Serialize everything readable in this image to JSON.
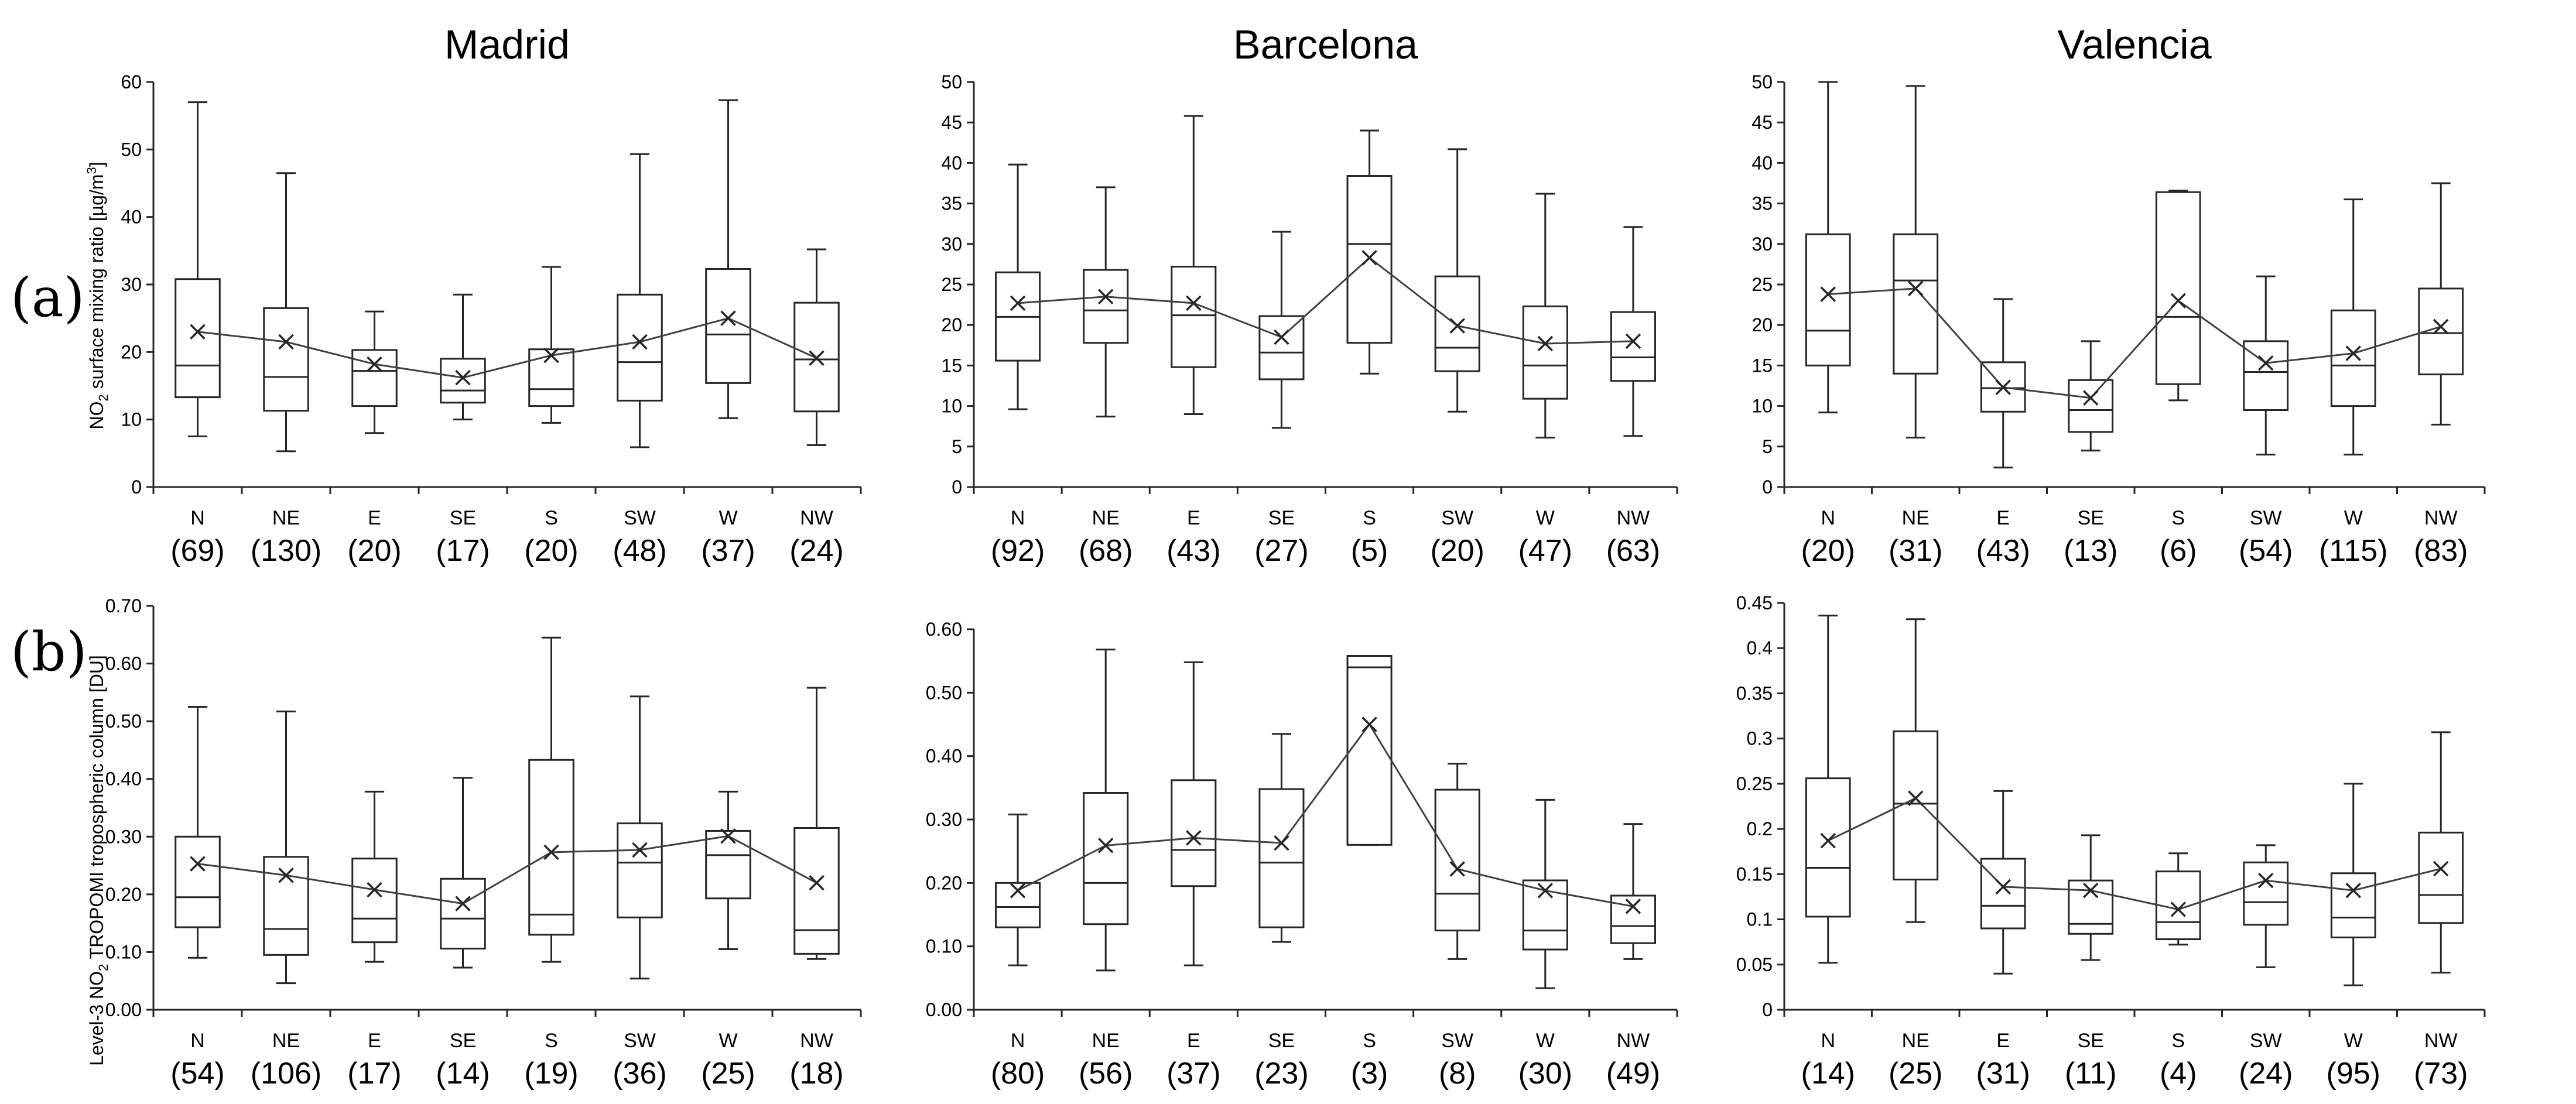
{
  "row_labels": [
    "(a)",
    "(b)"
  ],
  "city_titles": [
    "Madrid",
    "Barcelona",
    "Valencia"
  ],
  "ylabels": {
    "a": {
      "prefix": "NO",
      "sub": "2",
      "mid": " surface mixing ratio [µg/m",
      "sup": "3",
      "suffix": "]"
    },
    "b": {
      "prefix": "Level-3 NO",
      "sub": "2",
      "suffix": " TROPOMI tropospheric column [DU]"
    }
  },
  "chart_data": [
    {
      "type": "box",
      "row": "a",
      "city": "Madrid",
      "title": "Madrid",
      "categories": [
        "N",
        "NE",
        "E",
        "SE",
        "S",
        "SW",
        "W",
        "NW"
      ],
      "counts": [
        "(69)",
        "(130)",
        "(20)",
        "(17)",
        "(20)",
        "(48)",
        "(37)",
        "(24)"
      ],
      "ylim": [
        0,
        60
      ],
      "yticks": [
        0,
        10,
        20,
        30,
        40,
        50,
        60
      ],
      "ytick_labels": [
        "0",
        "10",
        "20",
        "30",
        "40",
        "50",
        "60"
      ],
      "boxes": [
        {
          "min": 7.5,
          "q1": 13.3,
          "median": 18.0,
          "q3": 30.8,
          "max": 57.0,
          "mean": 23.0
        },
        {
          "min": 5.3,
          "q1": 11.3,
          "median": 16.3,
          "q3": 26.5,
          "max": 46.5,
          "mean": 21.5
        },
        {
          "min": 8.0,
          "q1": 12.0,
          "median": 17.2,
          "q3": 20.3,
          "max": 26.0,
          "mean": 18.2
        },
        {
          "min": 10.0,
          "q1": 12.5,
          "median": 14.3,
          "q3": 19.0,
          "max": 28.5,
          "mean": 16.2
        },
        {
          "min": 9.5,
          "q1": 12.0,
          "median": 14.5,
          "q3": 20.4,
          "max": 32.6,
          "mean": 19.5
        },
        {
          "min": 5.9,
          "q1": 12.8,
          "median": 18.5,
          "q3": 28.5,
          "max": 49.3,
          "mean": 21.5
        },
        {
          "min": 10.2,
          "q1": 15.4,
          "median": 22.6,
          "q3": 32.3,
          "max": 57.3,
          "mean": 25.0
        },
        {
          "min": 6.2,
          "q1": 11.2,
          "median": 18.9,
          "q3": 27.3,
          "max": 35.2,
          "mean": 19.1
        }
      ]
    },
    {
      "type": "box",
      "row": "a",
      "city": "Barcelona",
      "title": "Barcelona",
      "categories": [
        "N",
        "NE",
        "E",
        "SE",
        "S",
        "SW",
        "W",
        "NW"
      ],
      "counts": [
        "(92)",
        "(68)",
        "(43)",
        "(27)",
        "(5)",
        "(20)",
        "(47)",
        "(63)"
      ],
      "ylim": [
        0,
        50
      ],
      "yticks": [
        0,
        5,
        10,
        15,
        20,
        25,
        30,
        35,
        40,
        45,
        50
      ],
      "ytick_labels": [
        "0",
        "5",
        "10",
        "15",
        "20",
        "25",
        "30",
        "35",
        "40",
        "45",
        "50"
      ],
      "boxes": [
        {
          "min": 9.6,
          "q1": 15.6,
          "median": 21.0,
          "q3": 26.5,
          "max": 39.8,
          "mean": 22.7
        },
        {
          "min": 8.7,
          "q1": 17.8,
          "median": 21.8,
          "q3": 26.8,
          "max": 37.0,
          "mean": 23.5
        },
        {
          "min": 9.0,
          "q1": 14.8,
          "median": 21.2,
          "q3": 27.2,
          "max": 45.8,
          "mean": 22.7
        },
        {
          "min": 7.3,
          "q1": 13.3,
          "median": 16.6,
          "q3": 21.1,
          "max": 31.5,
          "mean": 18.5
        },
        {
          "min": 14.0,
          "q1": 17.8,
          "median": 30.0,
          "q3": 38.4,
          "max": 44.0,
          "mean": 28.3
        },
        {
          "min": 9.3,
          "q1": 14.3,
          "median": 17.2,
          "q3": 26.0,
          "max": 41.7,
          "mean": 19.9
        },
        {
          "min": 6.1,
          "q1": 10.9,
          "median": 15.0,
          "q3": 22.3,
          "max": 36.2,
          "mean": 17.7
        },
        {
          "min": 6.3,
          "q1": 13.1,
          "median": 16.0,
          "q3": 21.6,
          "max": 32.1,
          "mean": 18.0
        }
      ]
    },
    {
      "type": "box",
      "row": "a",
      "city": "Valencia",
      "title": "Valencia",
      "categories": [
        "N",
        "NE",
        "E",
        "SE",
        "S",
        "SW",
        "W",
        "NW"
      ],
      "counts": [
        "(20)",
        "(31)",
        "(43)",
        "(13)",
        "(6)",
        "(54)",
        "(115)",
        "(83)"
      ],
      "ylim": [
        0,
        50
      ],
      "yticks": [
        0,
        5,
        10,
        15,
        20,
        25,
        30,
        35,
        40,
        45,
        50
      ],
      "ytick_labels": [
        "0",
        "5",
        "10",
        "15",
        "20",
        "25",
        "30",
        "35",
        "40",
        "45",
        "50"
      ],
      "boxes": [
        {
          "min": 9.2,
          "q1": 15.0,
          "median": 19.3,
          "q3": 31.2,
          "max": 50.0,
          "mean": 23.8
        },
        {
          "min": 6.1,
          "q1": 14.0,
          "median": 25.5,
          "q3": 31.2,
          "max": 49.5,
          "mean": 24.5
        },
        {
          "min": 2.4,
          "q1": 9.3,
          "median": 12.2,
          "q3": 15.4,
          "max": 23.2,
          "mean": 12.3
        },
        {
          "min": 4.5,
          "q1": 6.8,
          "median": 9.5,
          "q3": 13.2,
          "max": 18.0,
          "mean": 11.0
        },
        {
          "min": 10.7,
          "q1": 12.7,
          "median": 21.0,
          "q3": 36.4,
          "max": 36.6,
          "mean": 23.0
        },
        {
          "min": 4.0,
          "q1": 9.5,
          "median": 14.2,
          "q3": 18.0,
          "max": 26.0,
          "mean": 15.3
        },
        {
          "min": 4.0,
          "q1": 10.0,
          "median": 15.0,
          "q3": 21.8,
          "max": 35.5,
          "mean": 16.5
        },
        {
          "min": 7.7,
          "q1": 13.9,
          "median": 19.0,
          "q3": 24.5,
          "max": 37.5,
          "mean": 19.8
        }
      ]
    },
    {
      "type": "box",
      "row": "b",
      "city": "Madrid",
      "categories": [
        "N",
        "NE",
        "E",
        "SE",
        "S",
        "SW",
        "W",
        "NW"
      ],
      "counts": [
        "(54)",
        "(106)",
        "(17)",
        "(14)",
        "(19)",
        "(36)",
        "(25)",
        "(18)"
      ],
      "ylim": [
        0,
        0.7
      ],
      "yticks": [
        0,
        0.1,
        0.2,
        0.3,
        0.4,
        0.5,
        0.6,
        0.7
      ],
      "ytick_labels": [
        "0.00",
        "0.10",
        "0.20",
        "0.30",
        "0.40",
        "0.50",
        "0.60",
        "0.70"
      ],
      "boxes": [
        {
          "min": 0.09,
          "q1": 0.143,
          "median": 0.195,
          "q3": 0.3,
          "max": 0.525,
          "mean": 0.253
        },
        {
          "min": 0.046,
          "q1": 0.095,
          "median": 0.14,
          "q3": 0.265,
          "max": 0.517,
          "mean": 0.233
        },
        {
          "min": 0.083,
          "q1": 0.117,
          "median": 0.158,
          "q3": 0.262,
          "max": 0.378,
          "mean": 0.208
        },
        {
          "min": 0.073,
          "q1": 0.106,
          "median": 0.158,
          "q3": 0.227,
          "max": 0.402,
          "mean": 0.184
        },
        {
          "min": 0.083,
          "q1": 0.13,
          "median": 0.165,
          "q3": 0.433,
          "max": 0.645,
          "mean": 0.273
        },
        {
          "min": 0.054,
          "q1": 0.16,
          "median": 0.255,
          "q3": 0.323,
          "max": 0.543,
          "mean": 0.277
        },
        {
          "min": 0.105,
          "q1": 0.193,
          "median": 0.268,
          "q3": 0.31,
          "max": 0.378,
          "mean": 0.301
        },
        {
          "min": 0.088,
          "q1": 0.097,
          "median": 0.138,
          "q3": 0.315,
          "max": 0.558,
          "mean": 0.22
        }
      ]
    },
    {
      "type": "box",
      "row": "b",
      "city": "Barcelona",
      "categories": [
        "N",
        "NE",
        "E",
        "SE",
        "S",
        "SW",
        "W",
        "NW"
      ],
      "counts": [
        "(80)",
        "(56)",
        "(37)",
        "(23)",
        "(3)",
        "(8)",
        "(30)",
        "(49)"
      ],
      "ylim": [
        0,
        0.6
      ],
      "yticks": [
        0,
        0.1,
        0.2,
        0.3,
        0.4,
        0.5,
        0.6
      ],
      "ytick_labels": [
        "0.00",
        "0.10",
        "0.20",
        "0.30",
        "0.40",
        "0.50",
        "0.60"
      ],
      "boxes": [
        {
          "min": 0.07,
          "q1": 0.13,
          "median": 0.162,
          "q3": 0.2,
          "max": 0.308,
          "mean": 0.188
        },
        {
          "min": 0.062,
          "q1": 0.135,
          "median": 0.2,
          "q3": 0.342,
          "max": 0.568,
          "mean": 0.259
        },
        {
          "min": 0.07,
          "q1": 0.195,
          "median": 0.252,
          "q3": 0.362,
          "max": 0.548,
          "mean": 0.271
        },
        {
          "min": 0.107,
          "q1": 0.13,
          "median": 0.232,
          "q3": 0.348,
          "max": 0.435,
          "mean": 0.263
        },
        {
          "min": 0.26,
          "q1": 0.26,
          "median": 0.54,
          "q3": 0.558,
          "max": 0.558,
          "mean": 0.45
        },
        {
          "min": 0.08,
          "q1": 0.125,
          "median": 0.183,
          "q3": 0.347,
          "max": 0.388,
          "mean": 0.222
        },
        {
          "min": 0.034,
          "q1": 0.095,
          "median": 0.125,
          "q3": 0.204,
          "max": 0.331,
          "mean": 0.188
        },
        {
          "min": 0.08,
          "q1": 0.105,
          "median": 0.132,
          "q3": 0.18,
          "max": 0.293,
          "mean": 0.163
        }
      ]
    },
    {
      "type": "box",
      "row": "b",
      "city": "Valencia",
      "categories": [
        "N",
        "NE",
        "E",
        "SE",
        "S",
        "SW",
        "W",
        "NW"
      ],
      "counts": [
        "(14)",
        "(25)",
        "(31)",
        "(11)",
        "(4)",
        "(24)",
        "(95)",
        "(73)"
      ],
      "ylim": [
        0,
        0.45
      ],
      "yticks": [
        0,
        0.05,
        0.1,
        0.15,
        0.2,
        0.25,
        0.3,
        0.35,
        0.4,
        0.45
      ],
      "ytick_labels": [
        "0",
        "0.05",
        "0.1",
        "0.15",
        "0.2",
        "0.25",
        "0.3",
        "0.35",
        "0.4",
        "0.45"
      ],
      "boxes": [
        {
          "min": 0.052,
          "q1": 0.103,
          "median": 0.157,
          "q3": 0.256,
          "max": 0.436,
          "mean": 0.187
        },
        {
          "min": 0.097,
          "q1": 0.144,
          "median": 0.228,
          "q3": 0.308,
          "max": 0.432,
          "mean": 0.234
        },
        {
          "min": 0.04,
          "q1": 0.09,
          "median": 0.115,
          "q3": 0.167,
          "max": 0.242,
          "mean": 0.136
        },
        {
          "min": 0.055,
          "q1": 0.084,
          "median": 0.095,
          "q3": 0.143,
          "max": 0.193,
          "mean": 0.132
        },
        {
          "min": 0.072,
          "q1": 0.078,
          "median": 0.097,
          "q3": 0.153,
          "max": 0.173,
          "mean": 0.111
        },
        {
          "min": 0.047,
          "q1": 0.094,
          "median": 0.119,
          "q3": 0.163,
          "max": 0.182,
          "mean": 0.143
        },
        {
          "min": 0.027,
          "q1": 0.08,
          "median": 0.102,
          "q3": 0.151,
          "max": 0.25,
          "mean": 0.132
        },
        {
          "min": 0.041,
          "q1": 0.096,
          "median": 0.127,
          "q3": 0.196,
          "max": 0.307,
          "mean": 0.156
        }
      ]
    }
  ]
}
